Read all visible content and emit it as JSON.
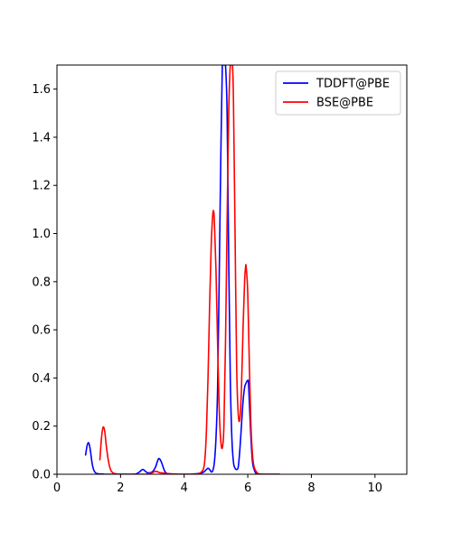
{
  "chart_data": {
    "type": "line",
    "title": "",
    "xlabel": "",
    "ylabel": "",
    "xlim": [
      0,
      11
    ],
    "ylim": [
      0,
      1.7
    ],
    "xticks": [
      0,
      2,
      4,
      6,
      8,
      10
    ],
    "yticks": [
      0.0,
      0.2,
      0.4,
      0.6,
      0.8,
      1.0,
      1.2,
      1.4,
      1.6
    ],
    "xtick_labels": [
      "0",
      "2",
      "4",
      "6",
      "8",
      "10"
    ],
    "ytick_labels": [
      "0.0",
      "0.2",
      "0.4",
      "0.6",
      "0.8",
      "1.0",
      "1.2",
      "1.4",
      "1.6"
    ],
    "grid": false,
    "legend_position": "top-right",
    "series": [
      {
        "name": "TDDFT@PBE",
        "color": "#0000ff",
        "x": [
          0.9,
          0.95,
          1.0,
          1.05,
          1.1,
          1.15,
          1.2,
          1.25,
          1.3,
          1.35,
          1.4,
          1.5,
          1.6,
          1.8,
          2.0,
          2.2,
          2.4,
          2.5,
          2.6,
          2.65,
          2.7,
          2.75,
          2.8,
          2.85,
          2.9,
          3.0,
          3.1,
          3.15,
          3.2,
          3.25,
          3.3,
          3.35,
          3.4,
          3.45,
          3.5,
          3.6,
          3.8,
          4.0,
          4.2,
          4.4,
          4.6,
          4.7,
          4.75,
          4.8,
          4.85,
          4.9,
          4.95,
          5.0,
          5.05,
          5.1,
          5.15,
          5.2,
          5.22,
          5.25,
          5.28,
          5.3,
          5.35,
          5.4,
          5.45,
          5.5,
          5.55,
          5.6,
          5.65,
          5.7,
          5.75,
          5.8,
          5.85,
          5.9,
          5.95,
          6.0,
          6.02,
          6.05,
          6.1,
          6.15,
          6.2,
          6.25,
          6.3,
          6.4,
          6.5,
          6.6,
          6.7,
          6.8,
          6.9,
          7.0
        ],
        "y": [
          0.08,
          0.12,
          0.13,
          0.1,
          0.05,
          0.02,
          0.008,
          0.003,
          0.002,
          0.001,
          0.001,
          0.0,
          0.0,
          0.0,
          0.0,
          0.0,
          0.0,
          0.002,
          0.01,
          0.016,
          0.02,
          0.016,
          0.01,
          0.006,
          0.006,
          0.01,
          0.03,
          0.05,
          0.065,
          0.06,
          0.045,
          0.025,
          0.01,
          0.004,
          0.002,
          0.001,
          0.0,
          0.0,
          0.0,
          0.002,
          0.008,
          0.02,
          0.025,
          0.02,
          0.01,
          0.015,
          0.05,
          0.15,
          0.35,
          0.8,
          1.3,
          1.7,
          1.7,
          1.7,
          1.7,
          1.7,
          1.5,
          0.9,
          0.4,
          0.15,
          0.05,
          0.025,
          0.02,
          0.03,
          0.1,
          0.2,
          0.3,
          0.36,
          0.38,
          0.39,
          0.38,
          0.3,
          0.15,
          0.05,
          0.02,
          0.005,
          0.002,
          0.0,
          0.0,
          0.0,
          0.0,
          0.0,
          0.0,
          0.0
        ]
      },
      {
        "name": "BSE@PBE",
        "color": "#ff0000",
        "x": [
          1.35,
          1.4,
          1.45,
          1.5,
          1.55,
          1.6,
          1.65,
          1.7,
          1.75,
          1.8,
          1.9,
          2.0,
          2.2,
          2.4,
          2.6,
          2.8,
          2.9,
          3.0,
          3.05,
          3.1,
          3.15,
          3.2,
          3.25,
          3.3,
          3.35,
          3.4,
          3.5,
          3.6,
          3.8,
          4.0,
          4.2,
          4.4,
          4.5,
          4.6,
          4.65,
          4.7,
          4.75,
          4.8,
          4.85,
          4.9,
          4.93,
          4.95,
          5.0,
          5.05,
          5.1,
          5.15,
          5.2,
          5.25,
          5.3,
          5.35,
          5.4,
          5.45,
          5.48,
          5.5,
          5.52,
          5.55,
          5.6,
          5.65,
          5.7,
          5.75,
          5.8,
          5.85,
          5.9,
          5.93,
          5.95,
          6.0,
          6.05,
          6.1,
          6.15,
          6.2,
          6.3,
          6.4,
          6.5,
          6.6,
          6.7,
          6.8,
          6.9,
          7.0
        ],
        "y": [
          0.06,
          0.15,
          0.195,
          0.18,
          0.12,
          0.07,
          0.035,
          0.015,
          0.007,
          0.003,
          0.001,
          0.0,
          0.0,
          0.0,
          0.0,
          0.0,
          0.002,
          0.006,
          0.01,
          0.012,
          0.011,
          0.008,
          0.006,
          0.006,
          0.005,
          0.004,
          0.002,
          0.001,
          0.0,
          0.0,
          0.0,
          0.001,
          0.005,
          0.02,
          0.06,
          0.18,
          0.4,
          0.7,
          0.95,
          1.08,
          1.09,
          1.05,
          0.85,
          0.55,
          0.28,
          0.14,
          0.11,
          0.2,
          0.55,
          1.05,
          1.5,
          1.7,
          1.7,
          1.7,
          1.7,
          1.55,
          1.0,
          0.45,
          0.25,
          0.23,
          0.35,
          0.6,
          0.8,
          0.86,
          0.86,
          0.75,
          0.45,
          0.2,
          0.08,
          0.03,
          0.005,
          0.001,
          0.0,
          0.0,
          0.0,
          0.0,
          0.0,
          0.0
        ]
      }
    ]
  }
}
